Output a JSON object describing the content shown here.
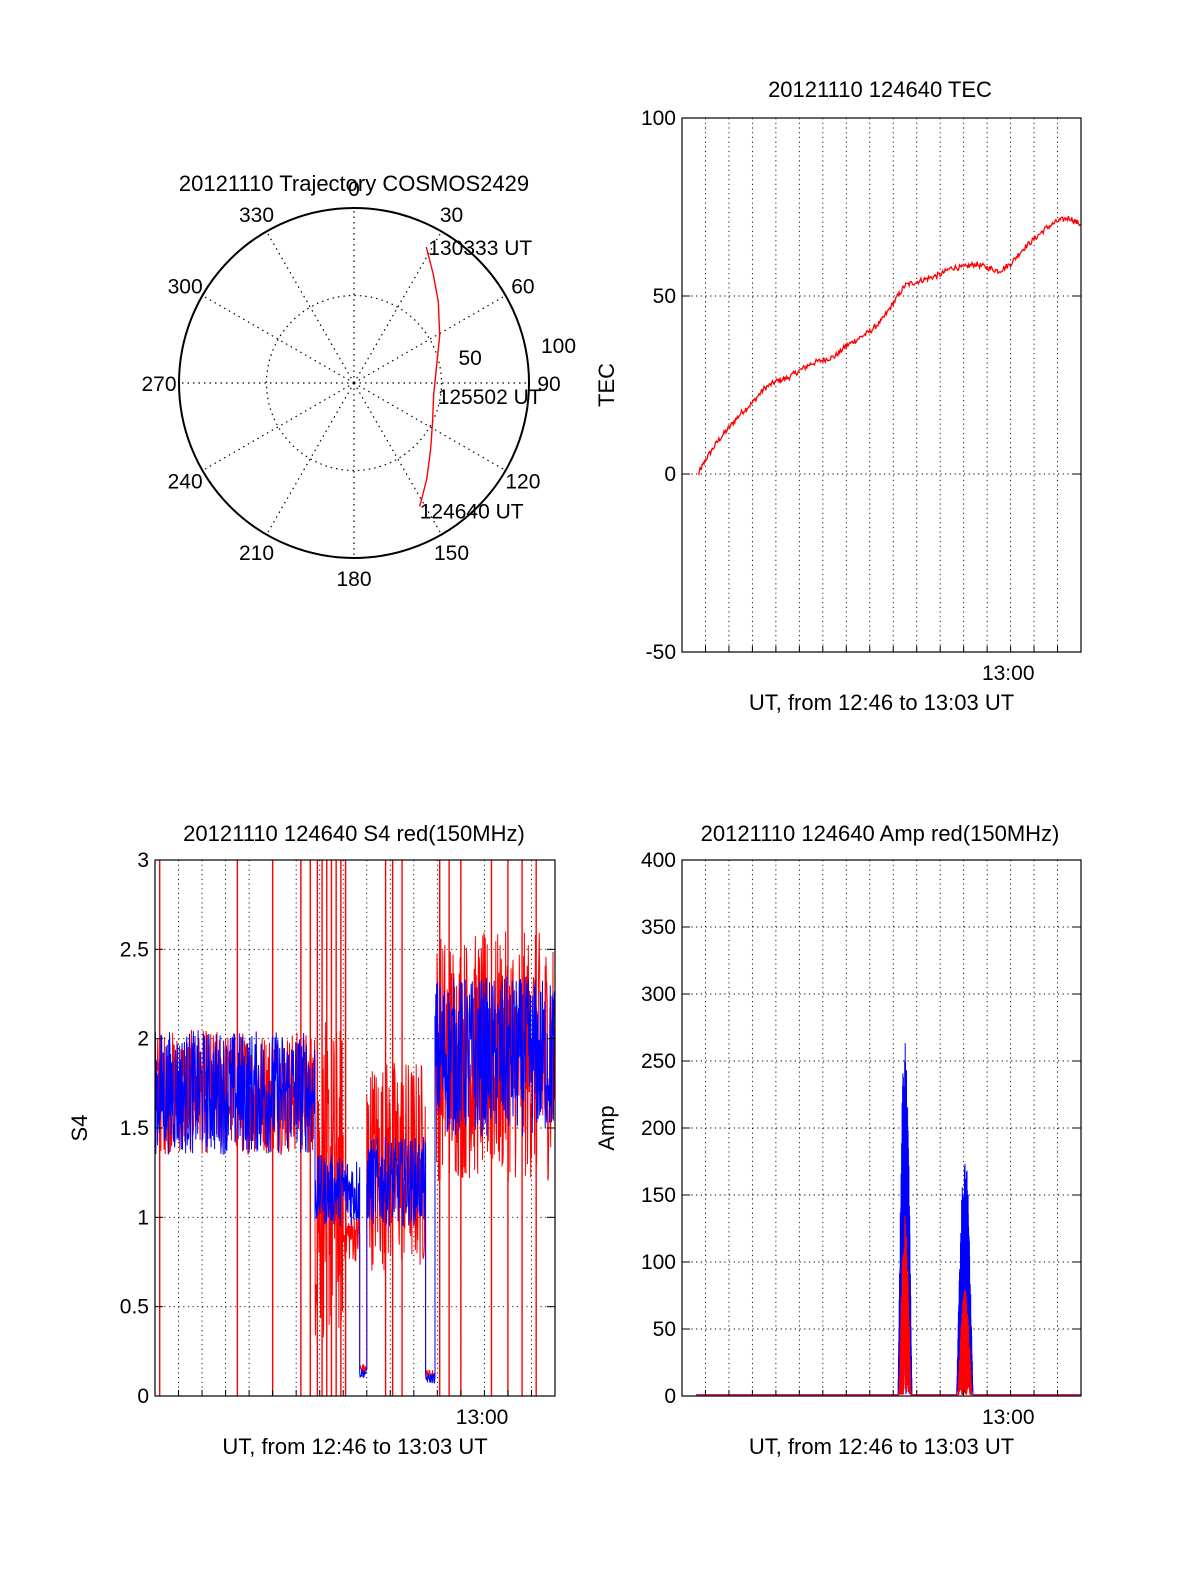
{
  "colors": {
    "red": "#ff0000",
    "blue": "#0000ff",
    "axis": "#000000",
    "grid": "#000000"
  },
  "chart_data": [
    {
      "type": "polar",
      "title": "20121110 Trajectory COSMOS2429",
      "angle_labels": [
        {
          "deg": 0,
          "text": "0"
        },
        {
          "deg": 30,
          "text": "30"
        },
        {
          "deg": 60,
          "text": "60"
        },
        {
          "deg": 90,
          "text": "90"
        },
        {
          "deg": 120,
          "text": "120"
        },
        {
          "deg": 150,
          "text": "150"
        },
        {
          "deg": 180,
          "text": "180"
        },
        {
          "deg": 210,
          "text": "210"
        },
        {
          "deg": 240,
          "text": "240"
        },
        {
          "deg": 270,
          "text": "270"
        },
        {
          "deg": 300,
          "text": "300"
        },
        {
          "deg": 330,
          "text": "330"
        }
      ],
      "radial_max": 100,
      "radial_ring_labels": [
        {
          "value": 50,
          "text": "50"
        },
        {
          "value": 100,
          "text": "100"
        }
      ],
      "trajectory": {
        "points": [
          {
            "az": 152,
            "r": 80
          },
          {
            "az": 143,
            "r": 69
          },
          {
            "az": 131,
            "r": 58
          },
          {
            "az": 116,
            "r": 50
          },
          {
            "az": 98,
            "r": 46
          },
          {
            "az": 79,
            "r": 48
          },
          {
            "az": 61,
            "r": 56
          },
          {
            "az": 46,
            "r": 67
          },
          {
            "az": 36,
            "r": 77
          },
          {
            "az": 28,
            "r": 88
          }
        ],
        "label_start": "124640 UT",
        "label_mid": "125502 UT",
        "label_end": "130333 UT"
      }
    },
    {
      "type": "line",
      "title": "20121110 124640 TEC",
      "ylabel": "TEC",
      "xlabel": "UT, from 12:46 to 13:03 UT",
      "ylim": [
        -50,
        100
      ],
      "yticks": [
        -50,
        0,
        50,
        100
      ],
      "xlim_minutes": [
        0,
        17
      ],
      "xtick_labels": [
        {
          "t": 13.9,
          "text": "13:00"
        }
      ],
      "grid": true,
      "series": [
        {
          "color": "red",
          "points": [
            [
              0.7,
              0
            ],
            [
              1.0,
              4
            ],
            [
              1.5,
              9
            ],
            [
              2.0,
              13
            ],
            [
              2.5,
              17
            ],
            [
              3.0,
              20
            ],
            [
              3.5,
              24
            ],
            [
              4.0,
              26
            ],
            [
              4.5,
              27
            ],
            [
              5.0,
              29
            ],
            [
              5.5,
              31
            ],
            [
              6.0,
              32
            ],
            [
              6.5,
              33
            ],
            [
              7.0,
              36
            ],
            [
              7.5,
              38
            ],
            [
              8.0,
              40
            ],
            [
              8.5,
              43
            ],
            [
              9.0,
              48
            ],
            [
              9.5,
              53
            ],
            [
              10.0,
              54
            ],
            [
              10.5,
              55
            ],
            [
              11.0,
              56
            ],
            [
              11.5,
              58
            ],
            [
              12.0,
              58
            ],
            [
              12.5,
              59
            ],
            [
              13.0,
              58
            ],
            [
              13.5,
              57
            ],
            [
              14.0,
              59
            ],
            [
              14.5,
              63
            ],
            [
              15.0,
              66
            ],
            [
              15.5,
              69
            ],
            [
              16.0,
              71
            ],
            [
              16.5,
              72
            ],
            [
              17.0,
              70
            ]
          ]
        }
      ]
    },
    {
      "type": "line",
      "title": "20121110 124640 S4 red(150MHz)",
      "ylabel": "S4",
      "xlabel": "UT, from 12:46 to 13:03 UT",
      "ylim": [
        0,
        3
      ],
      "yticks": [
        {
          "v": 0,
          "text": "0"
        },
        {
          "v": 0.5,
          "text": "0.5"
        },
        {
          "v": 1,
          "text": "1"
        },
        {
          "v": 1.5,
          "text": "1.5"
        },
        {
          "v": 2,
          "text": "2"
        },
        {
          "v": 2.5,
          "text": "2.5"
        },
        {
          "v": 3,
          "text": "3"
        }
      ],
      "xlim_minutes": [
        0,
        17
      ],
      "xtick_labels": [
        {
          "t": 13.9,
          "text": "13:00"
        }
      ],
      "grid": true,
      "series": [
        {
          "color": "red",
          "segments": [
            {
              "t0": 0,
              "t1": 6.8,
              "base": 1.7,
              "amp": 0.35
            },
            {
              "t0": 6.8,
              "t1": 8.0,
              "base": 1.2,
              "amp": 0.9
            },
            {
              "t0": 8.0,
              "t1": 8.7,
              "base": 0.9,
              "amp": 0.15
            },
            {
              "t0": 8.7,
              "t1": 9.0,
              "base": 0.15,
              "amp": 0.03
            },
            {
              "t0": 9.0,
              "t1": 11.5,
              "base": 1.3,
              "amp": 0.6
            },
            {
              "t0": 11.5,
              "t1": 11.9,
              "base": 0.12,
              "amp": 0.03
            },
            {
              "t0": 11.9,
              "t1": 17,
              "base": 1.9,
              "amp": 0.7
            }
          ]
        },
        {
          "color": "blue",
          "segments": [
            {
              "t0": 0,
              "t1": 6.8,
              "base": 1.7,
              "amp": 0.35
            },
            {
              "t0": 6.8,
              "t1": 8.7,
              "base": 1.15,
              "amp": 0.2
            },
            {
              "t0": 8.7,
              "t1": 9.0,
              "base": 0.13,
              "amp": 0.03
            },
            {
              "t0": 9.0,
              "t1": 11.5,
              "base": 1.2,
              "amp": 0.25
            },
            {
              "t0": 11.5,
              "t1": 11.9,
              "base": 0.1,
              "amp": 0.03
            },
            {
              "t0": 11.9,
              "t1": 17,
              "base": 1.9,
              "amp": 0.45
            }
          ]
        }
      ],
      "red_spikes_minutes": [
        0.2,
        3.5,
        5.0,
        6.2,
        6.6,
        6.9,
        7.1,
        7.3,
        7.5,
        7.7,
        7.9,
        8.1,
        9.8,
        10.1,
        10.5,
        12.1,
        12.5,
        13.0,
        14.3,
        15.0,
        15.6,
        16.2
      ]
    },
    {
      "type": "line",
      "title": "20121110 124640 Amp red(150MHz)",
      "ylabel": "Amp",
      "xlabel": "UT, from 12:46 to 13:03 UT",
      "ylim": [
        0,
        400
      ],
      "yticks": [
        0,
        50,
        100,
        150,
        200,
        250,
        300,
        350,
        400
      ],
      "xlim_minutes": [
        0,
        17
      ],
      "xtick_labels": [
        {
          "t": 13.9,
          "text": "13:00"
        }
      ],
      "grid": true,
      "series": [
        {
          "color": "blue",
          "bursts": [
            {
              "t0": 9.2,
              "t1": 9.8,
              "peak": 275,
              "mean": 200
            },
            {
              "t0": 11.7,
              "t1": 12.4,
              "peak": 185,
              "mean": 140
            }
          ]
        },
        {
          "color": "red",
          "bursts": [
            {
              "t0": 9.25,
              "t1": 9.75,
              "peak": 135,
              "mean": 90
            },
            {
              "t0": 11.75,
              "t1": 12.35,
              "peak": 80,
              "mean": 55
            }
          ]
        }
      ]
    }
  ]
}
